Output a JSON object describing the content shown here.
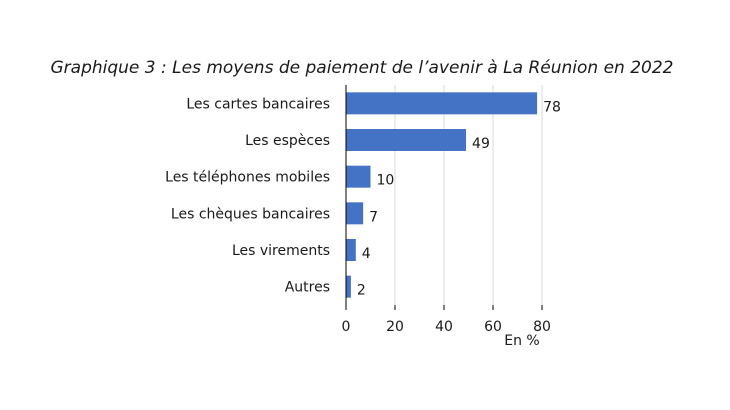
{
  "chart_data": {
    "type": "bar",
    "orientation": "horizontal",
    "title": "Graphique 3 : Les moyens de paiement de l’avenir à La Réunion en 2022",
    "categories": [
      "Les cartes bancaires",
      "Les espèces",
      "Les téléphones mobiles",
      "Les chèques bancaires",
      "Les virements",
      "Autres"
    ],
    "values": [
      78,
      49,
      10,
      7,
      4,
      2
    ],
    "data_labels": [
      "78",
      "49",
      "10",
      "7",
      "4",
      "2"
    ],
    "xlim": [
      0,
      80
    ],
    "xticks": [
      0,
      20,
      40,
      60,
      80
    ],
    "xtick_labels": [
      "0",
      "20",
      "40",
      "60",
      "80"
    ],
    "unit_label": "En %",
    "bar_color": "#4472c4",
    "grid": "vertical gridlines",
    "legend": "none"
  }
}
